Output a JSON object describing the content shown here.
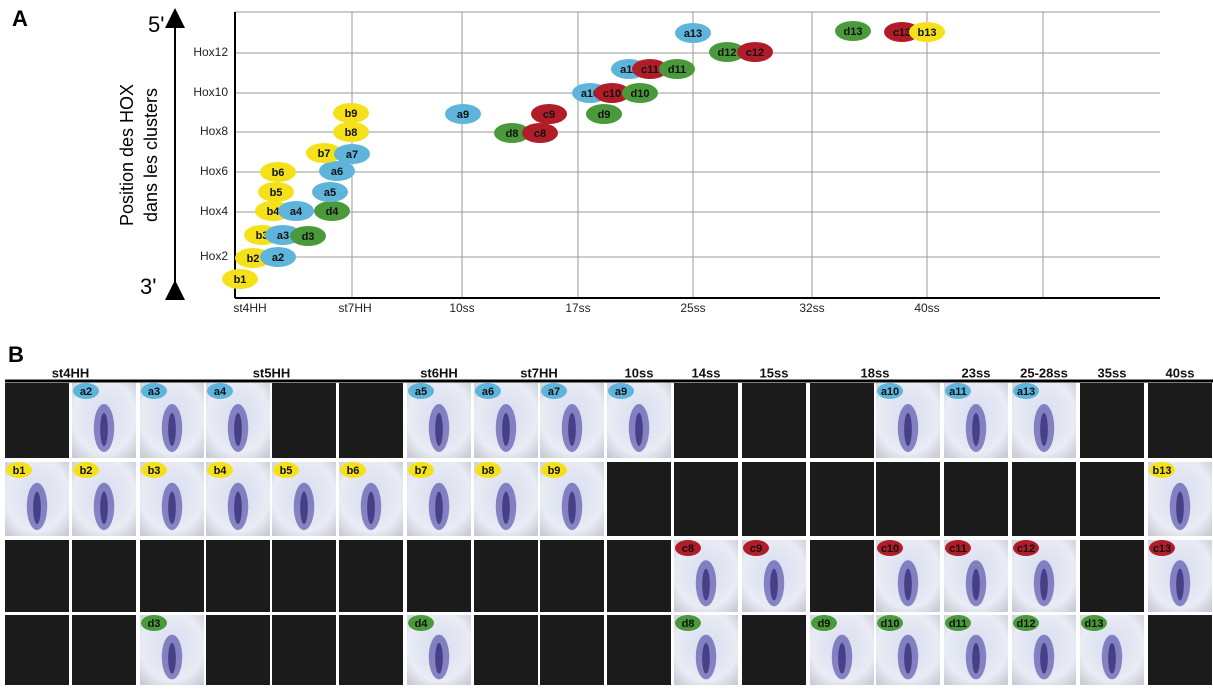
{
  "panel_a": {
    "label": "A",
    "axis_title": [
      "Position des HOX",
      "dans les clusters"
    ],
    "top_label": "5'",
    "bottom_label": "3'",
    "y_labels": [
      "Hox12",
      "Hox10",
      "Hox8",
      "Hox6",
      "Hox4",
      "Hox2"
    ],
    "x_labels": [
      "st4HH",
      "st7HH",
      "10ss",
      "17ss",
      "25ss",
      "32ss",
      "40ss"
    ],
    "nodes": [
      {
        "label": "b1",
        "color": "#f5e11a"
      },
      {
        "label": "b2",
        "color": "#f5e11a"
      },
      {
        "label": "a2",
        "color": "#5fb4dc"
      },
      {
        "label": "b3",
        "color": "#f5e11a"
      },
      {
        "label": "a3",
        "color": "#5fb4dc"
      },
      {
        "label": "d3",
        "color": "#4a9a3c"
      },
      {
        "label": "b4",
        "color": "#f5e11a"
      },
      {
        "label": "a4",
        "color": "#5fb4dc"
      },
      {
        "label": "d4",
        "color": "#4a9a3c"
      },
      {
        "label": "b5",
        "color": "#f5e11a"
      },
      {
        "label": "a5",
        "color": "#5fb4dc"
      },
      {
        "label": "b6",
        "color": "#f5e11a"
      },
      {
        "label": "a6",
        "color": "#5fb4dc"
      },
      {
        "label": "b7",
        "color": "#f5e11a"
      },
      {
        "label": "a7",
        "color": "#5fb4dc"
      },
      {
        "label": "b8",
        "color": "#f5e11a"
      },
      {
        "label": "b9",
        "color": "#f5e11a"
      },
      {
        "label": "a9",
        "color": "#5fb4dc"
      },
      {
        "label": "d8",
        "color": "#4a9a3c"
      },
      {
        "label": "c8",
        "color": "#b01c28"
      },
      {
        "label": "c9",
        "color": "#b01c28"
      },
      {
        "label": "d9",
        "color": "#4a9a3c"
      },
      {
        "label": "a10",
        "color": "#5fb4dc"
      },
      {
        "label": "c10",
        "color": "#b01c28"
      },
      {
        "label": "d10",
        "color": "#4a9a3c"
      },
      {
        "label": "a11",
        "color": "#5fb4dc"
      },
      {
        "label": "c11",
        "color": "#b01c28"
      },
      {
        "label": "d11",
        "color": "#4a9a3c"
      },
      {
        "label": "a13",
        "color": "#5fb4dc"
      },
      {
        "label": "d12",
        "color": "#4a9a3c"
      },
      {
        "label": "c12",
        "color": "#b01c28"
      },
      {
        "label": "d13",
        "color": "#4a9a3c"
      },
      {
        "label": "c13",
        "color": "#b01c28"
      },
      {
        "label": "b13",
        "color": "#f5e11a"
      }
    ]
  },
  "panel_b": {
    "label": "B",
    "headers": [
      "st4HH",
      "st5HH",
      "st6HH",
      "st7HH",
      "10ss",
      "14ss",
      "15ss",
      "18ss",
      "23ss",
      "25-28ss",
      "35ss",
      "40ss"
    ],
    "rows": [
      {
        "color": "#5fb4dc",
        "cells": [
          null,
          "a2",
          "a3",
          "a4",
          null,
          null,
          "a5",
          "a6",
          "a7",
          "a9",
          null,
          null,
          null,
          "a10",
          "a11",
          "a13",
          null,
          null
        ]
      },
      {
        "color": "#f5e11a",
        "cells": [
          "b1",
          "b2",
          "b3",
          "b4",
          "b5",
          "b6",
          "b7",
          "b8",
          "b9",
          null,
          null,
          null,
          null,
          null,
          null,
          null,
          null,
          "b13"
        ]
      },
      {
        "color": "#b01c28",
        "cells": [
          null,
          null,
          null,
          null,
          null,
          null,
          null,
          null,
          null,
          null,
          "c8",
          "c9",
          null,
          "c10",
          "c11",
          "c12",
          null,
          "c13"
        ]
      },
      {
        "color": "#4a9a3c",
        "cells": [
          null,
          null,
          "d3",
          null,
          null,
          null,
          "d4",
          null,
          null,
          null,
          "d8",
          null,
          "d9",
          "d10",
          "d11",
          "d12",
          "d13",
          null
        ]
      }
    ]
  }
}
